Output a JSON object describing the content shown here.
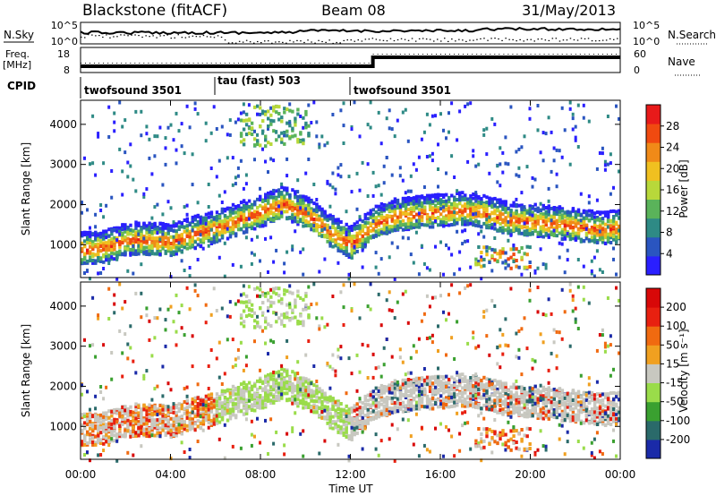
{
  "header": {
    "station": "Blackstone (fitACF)",
    "beam": "Beam 08",
    "date": "31/May/2013"
  },
  "noise_panel": {
    "left_label": "N.Sky",
    "right_label": "N.Search",
    "left_ticks": [
      "10^5",
      "10^0"
    ],
    "right_ticks": [
      "10^5",
      "10^0"
    ]
  },
  "freq_panel": {
    "left_label_top": "Freq.",
    "left_label_unit": "[MHz]",
    "left_ticks": [
      "18",
      "8"
    ],
    "right_label": "Nave",
    "right_ticks": [
      "60",
      "0"
    ]
  },
  "cpid": {
    "label": "CPID",
    "segments": [
      {
        "name": "twofsound 3501",
        "start": 0,
        "end": 6
      },
      {
        "name": "tau (fast) 503",
        "start": 6,
        "end": 12
      },
      {
        "name": "twofsound 3501",
        "start": 12,
        "end": 24
      }
    ]
  },
  "chart_data": [
    {
      "type": "heatmap",
      "panel": "power",
      "xlabel": "",
      "ylabel": "Slant Range [km]",
      "xlim": [
        0,
        24
      ],
      "ylim": [
        180,
        4600
      ],
      "y_ticks": [
        1000,
        2000,
        3000,
        4000
      ],
      "colorbar": {
        "label": "Power [dB]",
        "ticks": [
          "4",
          "8",
          "12",
          "16",
          "20",
          "24",
          "28"
        ],
        "colors": [
          "#2a1fff",
          "#2a55c0",
          "#2e8a85",
          "#5ab35a",
          "#b8d83a",
          "#f0c020",
          "#f08a18",
          "#f04a10",
          "#e81a1a"
        ]
      },
      "ridge_km": [
        [
          0,
          900
        ],
        [
          1,
          950
        ],
        [
          2,
          1150
        ],
        [
          3,
          1150
        ],
        [
          4,
          1100
        ],
        [
          5,
          1300
        ],
        [
          6,
          1450
        ],
        [
          7,
          1650
        ],
        [
          8,
          1850
        ],
        [
          9,
          2050
        ],
        [
          10,
          1800
        ],
        [
          11,
          1350
        ],
        [
          12,
          1050
        ],
        [
          13,
          1550
        ],
        [
          14,
          1750
        ],
        [
          15,
          1800
        ],
        [
          16,
          1850
        ],
        [
          17,
          1900
        ],
        [
          18,
          1800
        ],
        [
          19,
          1650
        ],
        [
          20,
          1600
        ],
        [
          21,
          1550
        ],
        [
          22,
          1500
        ],
        [
          23,
          1400
        ],
        [
          24,
          1450
        ]
      ]
    },
    {
      "type": "heatmap",
      "panel": "velocity",
      "xlabel": "Time UT",
      "ylabel": "Slant Range [km]",
      "xlim": [
        0,
        24
      ],
      "ylim": [
        180,
        4600
      ],
      "x_ticks": [
        "00:00",
        "04:00",
        "08:00",
        "12:00",
        "16:00",
        "20:00",
        "00:00"
      ],
      "y_ticks": [
        1000,
        2000,
        3000,
        4000
      ],
      "colorbar": {
        "label": "Velocity [m s⁻¹]",
        "ticks": [
          "200",
          "100",
          "50",
          "15",
          "-15",
          "-50",
          "-100",
          "-200"
        ],
        "colors": [
          "#1a2aa8",
          "#2a6a6a",
          "#3aa030",
          "#9adc4a",
          "#c8c8c0",
          "#f0a020",
          "#f06a10",
          "#e82010",
          "#d80808"
        ]
      }
    }
  ]
}
